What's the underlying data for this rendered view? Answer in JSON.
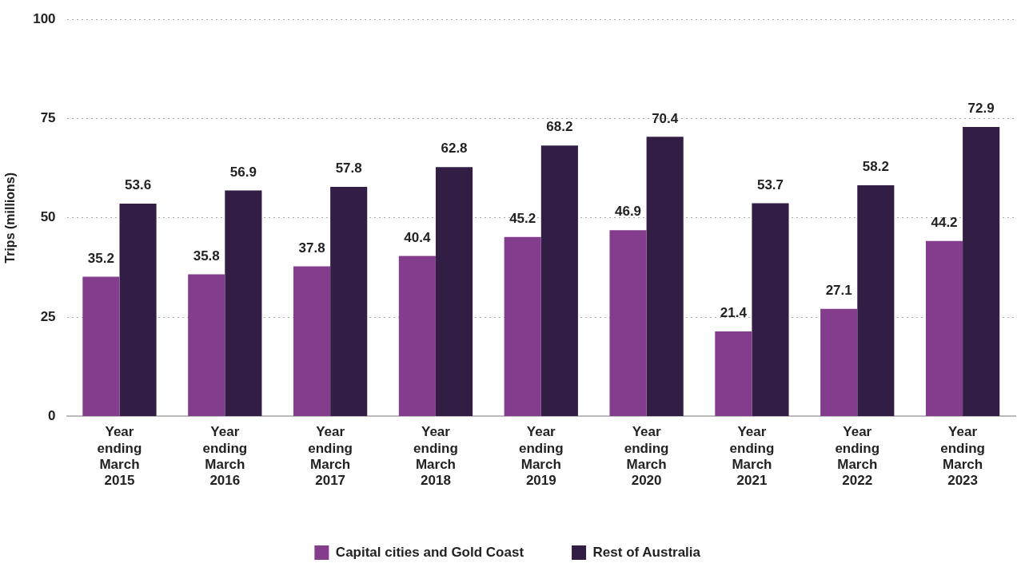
{
  "chart_data": {
    "type": "bar",
    "ylabel": "Trips (millions)",
    "categories": [
      "Year ending March 2015",
      "Year ending March 2016",
      "Year ending March 2017",
      "Year ending March 2018",
      "Year ending March 2019",
      "Year ending March 2020",
      "Year ending March 2021",
      "Year ending March 2022",
      "Year ending March 2023"
    ],
    "series": [
      {
        "name": "Capital cities and Gold Coast",
        "color": "#843d8c",
        "values": [
          35.2,
          35.8,
          37.8,
          40.4,
          45.2,
          46.9,
          21.4,
          27.1,
          44.2
        ]
      },
      {
        "name": "Rest of Australia",
        "color": "#321e45",
        "values": [
          53.6,
          56.9,
          57.8,
          62.8,
          68.2,
          70.4,
          53.7,
          58.2,
          72.9
        ]
      }
    ],
    "ylim": [
      0,
      100
    ],
    "yticks": [
      0,
      25,
      50,
      75,
      100
    ],
    "grid": "y",
    "legend": "bottom",
    "data_labels": true
  }
}
